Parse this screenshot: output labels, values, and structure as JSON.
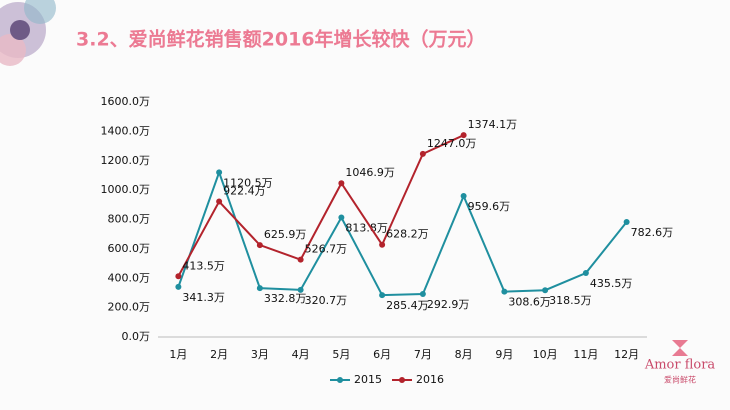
{
  "chart_data": {
    "type": "line",
    "title": "3.2、爱尚鲜花销售额2016年增长较快（万元）",
    "categories": [
      "1月",
      "2月",
      "3月",
      "4月",
      "5月",
      "6月",
      "7月",
      "8月",
      "9月",
      "10月",
      "11月",
      "12月"
    ],
    "series": [
      {
        "name": "2015",
        "color": "#1f8f9f",
        "values": [
          341.3,
          1120.5,
          332.8,
          320.7,
          813.8,
          285.4,
          292.9,
          959.6,
          308.6,
          318.5,
          435.5,
          782.6
        ],
        "value_labels": [
          "341.3万",
          "1120.5万",
          "332.8万",
          "320.7万",
          "813.8万",
          "285.4万",
          "292.9万",
          "959.6万",
          "308.6万",
          "318.5万",
          "435.5万",
          "782.6万"
        ]
      },
      {
        "name": "2016",
        "color": "#b3232c",
        "values": [
          413.5,
          922.4,
          625.9,
          526.7,
          1046.9,
          628.2,
          1247.0,
          1374.1,
          null,
          null,
          null,
          null
        ],
        "value_labels": [
          "413.5万",
          "922.4万",
          "625.9万",
          "526.7万",
          "1046.9万",
          "628.2万",
          "1247.0万",
          "1374.1万",
          null,
          null,
          null,
          null
        ]
      }
    ],
    "ylim": [
      0,
      1600
    ],
    "yticks": [
      {
        "value": 0,
        "label": "0.0万"
      },
      {
        "value": 200,
        "label": "200.0万"
      },
      {
        "value": 400,
        "label": "400.0万"
      },
      {
        "value": 600,
        "label": "600.0万"
      },
      {
        "value": 800,
        "label": "800.0万"
      },
      {
        "value": 1000,
        "label": "1000.0万"
      },
      {
        "value": 1200,
        "label": "1200.0万"
      },
      {
        "value": 1400,
        "label": "1400.0万"
      },
      {
        "value": 1600,
        "label": "1600.0万"
      }
    ],
    "grid": false,
    "legend": "bottom"
  },
  "logo": {
    "name": "Amor flora",
    "subtitle": "爱尚鲜花"
  }
}
